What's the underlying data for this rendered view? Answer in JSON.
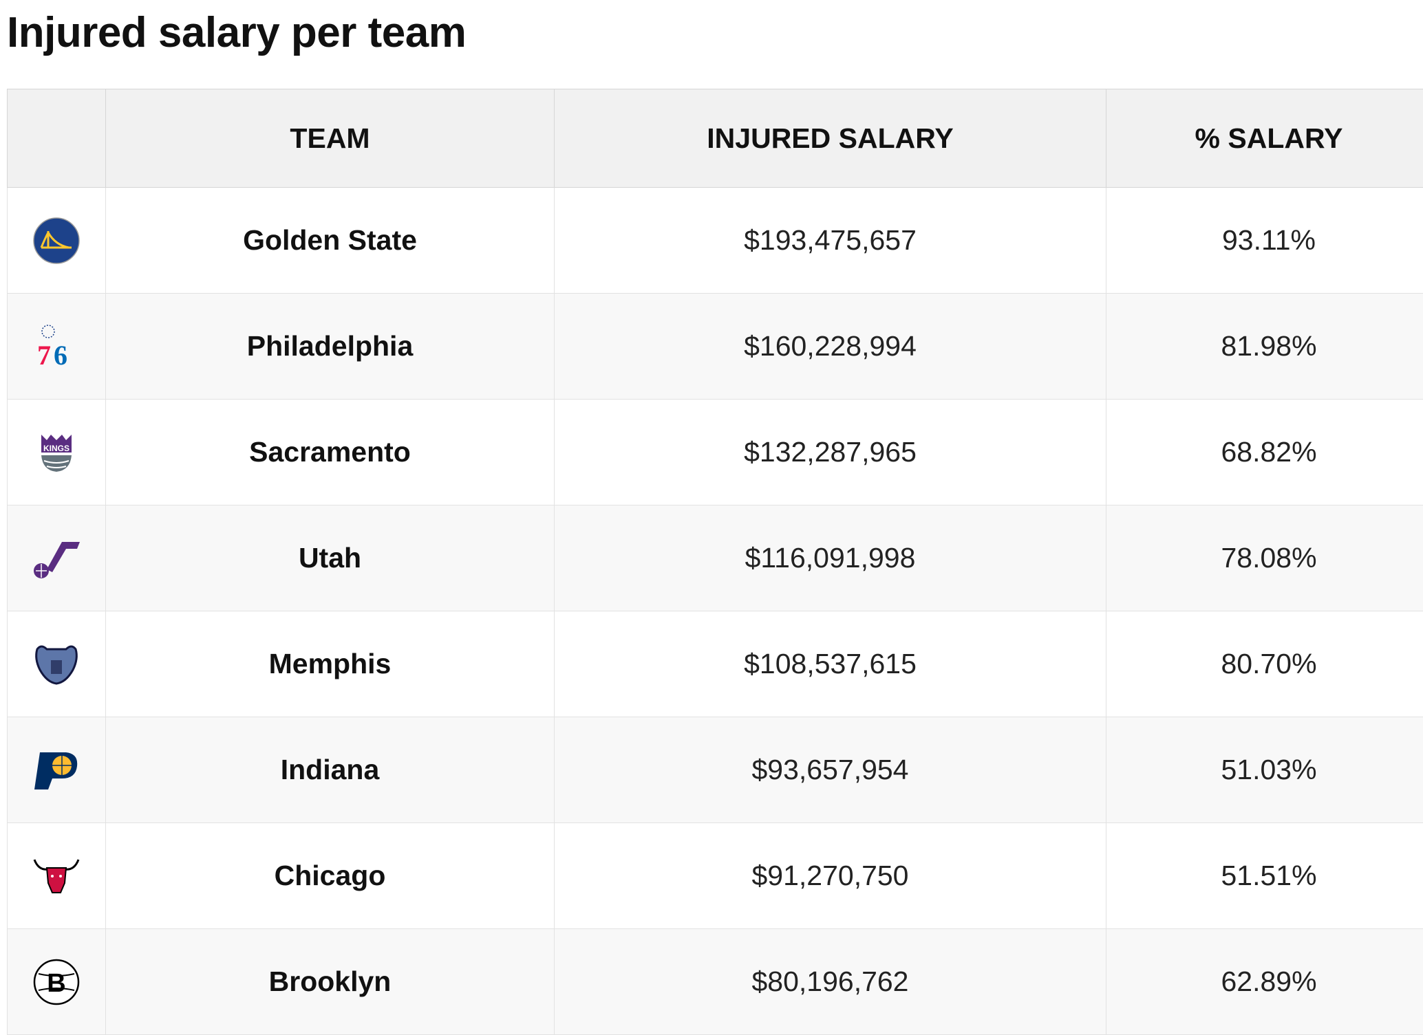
{
  "title": "Injured salary per team",
  "columns": [
    "",
    "TEAM",
    "INJURED SALARY",
    "% SALARY"
  ],
  "rows": [
    {
      "logo": "golden-state-logo",
      "team": "Golden State",
      "injured_salary": "$193,475,657",
      "pct_salary": "93.11%"
    },
    {
      "logo": "philadelphia-76ers-logo",
      "team": "Philadelphia",
      "injured_salary": "$160,228,994",
      "pct_salary": "81.98%"
    },
    {
      "logo": "sacramento-kings-logo",
      "team": "Sacramento",
      "injured_salary": "$132,287,965",
      "pct_salary": "68.82%"
    },
    {
      "logo": "utah-jazz-logo",
      "team": "Utah",
      "injured_salary": "$116,091,998",
      "pct_salary": "78.08%"
    },
    {
      "logo": "memphis-grizzlies-logo",
      "team": "Memphis",
      "injured_salary": "$108,537,615",
      "pct_salary": "80.70%"
    },
    {
      "logo": "indiana-pacers-logo",
      "team": "Indiana",
      "injured_salary": "$93,657,954",
      "pct_salary": "51.03%"
    },
    {
      "logo": "chicago-bulls-logo",
      "team": "Chicago",
      "injured_salary": "$91,270,750",
      "pct_salary": "51.51%"
    },
    {
      "logo": "brooklyn-nets-logo",
      "team": "Brooklyn",
      "injured_salary": "$80,196,762",
      "pct_salary": "62.89%"
    }
  ]
}
